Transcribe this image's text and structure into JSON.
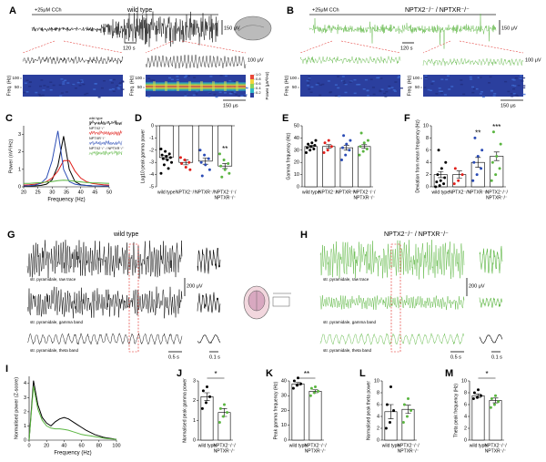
{
  "panels": {
    "A": {
      "label": "A",
      "drug": "+25μM CCh",
      "title": "wild type",
      "scale_v": "150 μV",
      "scale_t": "120 s",
      "zoom_scale": "100 μV",
      "freq_label": "Freq. (Hz)",
      "freq_ticks": [
        50,
        100
      ],
      "colorbar_label": "Power (μV²/Hz)",
      "colorbar_ticks": [
        0.2,
        0.4,
        0.6,
        0.8,
        {
          "value": 1,
          "label": "1.0"
        }
      ],
      "time_scale": "150 μs"
    },
    "B": {
      "label": "B",
      "drug": "+25μM CCh",
      "title": "NPTX2⁻/⁻ / NPTXR⁻/⁻",
      "scale_v": "150 μV",
      "scale_t": "120 s",
      "zoom_scale": "100 μV",
      "freq_label": "Freq. (Hz)",
      "freq_ticks": [
        50,
        100
      ],
      "time_scale": "150 μs"
    },
    "G": {
      "label": "G",
      "title": "wild type",
      "traces": [
        "str. pyramidale, raw trace",
        "str. pyramidale, gamma band",
        "str. pyramidale, theta band"
      ],
      "scale_v": "200 μV",
      "scale_t1": "0.5 s",
      "scale_t2": "0.1 s"
    },
    "H": {
      "label": "H",
      "title": "NPTX2⁻/⁻ / NPTXR⁻/⁻",
      "traces": [
        "str. pyramidale, raw trace",
        "str. pyramidale, gamma band",
        "str. pyramidale, theta band"
      ],
      "scale_v": "200 μV",
      "scale_t1": "0.5 s",
      "scale_t2": "0.1 s"
    }
  },
  "chart_data": [
    {
      "type": "line",
      "label": "C",
      "xlabel": "Frequency (Hz)",
      "ylabel": "Power (nV²/Hz)",
      "x": [
        20,
        22,
        24,
        26,
        28,
        30,
        32,
        34,
        36,
        38,
        40,
        42,
        44,
        46,
        48,
        50
      ],
      "xlim": [
        20,
        50
      ],
      "xticks": [
        20,
        25,
        30,
        35,
        40,
        45,
        50
      ],
      "ylim": [
        0,
        3.5
      ],
      "yticks": [
        0,
        1,
        2,
        3
      ],
      "series": [
        {
          "name": "wild type",
          "color": "#000000",
          "values": [
            0.03,
            0.04,
            0.05,
            0.08,
            0.15,
            0.4,
            1.2,
            2.9,
            1.0,
            0.3,
            0.12,
            0.08,
            0.06,
            0.05,
            0.04,
            0.04
          ]
        },
        {
          "name": "NPTX2⁻/⁻",
          "color": "#e0201b",
          "values": [
            0.1,
            0.12,
            0.15,
            0.2,
            0.3,
            0.5,
            0.9,
            1.5,
            1.5,
            0.9,
            0.5,
            0.3,
            0.2,
            0.15,
            0.12,
            0.1
          ]
        },
        {
          "name": "NPTXR⁻/⁻",
          "color": "#2a4bb5",
          "values": [
            0.05,
            0.07,
            0.1,
            0.2,
            0.5,
            1.5,
            3.2,
            1.0,
            0.3,
            0.15,
            0.1,
            0.08,
            0.06,
            0.05,
            0.05,
            0.04
          ]
        },
        {
          "name": "NPTX2⁻/⁻ / NPTXR⁻/⁻",
          "color": "#5ab540",
          "values": [
            0.2,
            0.2,
            0.22,
            0.24,
            0.27,
            0.3,
            0.35,
            0.38,
            0.36,
            0.32,
            0.28,
            0.25,
            0.23,
            0.22,
            0.21,
            0.2
          ]
        }
      ]
    },
    {
      "type": "dotbar",
      "label": "D",
      "ylabel": "Log10 peak gamma power",
      "categories": [
        "wild type",
        "NPTX2⁻/⁻",
        "NPTXR⁻/⁻",
        [
          "NPTX2⁻/⁻/",
          "NPTXR⁻/⁻"
        ]
      ],
      "colors": [
        "#000000",
        "#e0201b",
        "#2a4bb5",
        "#5ab540"
      ],
      "values": [
        -2.6,
        -3.0,
        -2.9,
        -3.3
      ],
      "errors": [
        0.15,
        0.2,
        0.25,
        0.2
      ],
      "points": [
        [
          -1.9,
          -2.1,
          -2.3,
          -2.4,
          -2.5,
          -2.6,
          -2.7,
          -2.8,
          -3.0,
          -3.2,
          -3.5,
          -3.9
        ],
        [
          -2.6,
          -2.8,
          -3.0,
          -3.1,
          -3.4,
          -3.6
        ],
        [
          -2.0,
          -2.4,
          -2.7,
          -3.0,
          -3.2,
          -3.6,
          -4.1
        ],
        [
          -2.3,
          -2.8,
          -3.1,
          -3.3,
          -3.6,
          -3.9,
          -4.2
        ]
      ],
      "significance": [
        null,
        null,
        null,
        "**"
      ],
      "ylim": [
        -5,
        0
      ],
      "yticks": [
        -5,
        -4,
        -3,
        -2,
        -1,
        0
      ]
    },
    {
      "type": "dotbar",
      "label": "E",
      "ylabel": "Gamma frequency (Hz)",
      "categories": [
        "wild type",
        "NPTX2⁻/⁻",
        "NPTXR⁻/⁻",
        [
          "NPTX2⁻/⁻/",
          "NPTXR⁻/⁻"
        ]
      ],
      "colors": [
        "#000000",
        "#e0201b",
        "#2a4bb5",
        "#5ab540"
      ],
      "values": [
        33,
        33,
        32,
        33
      ],
      "errors": [
        0.8,
        1.5,
        2,
        1.5
      ],
      "points": [
        [
          28,
          30,
          31,
          32,
          33,
          34,
          35,
          36,
          38
        ],
        [
          28,
          30,
          33,
          36,
          38
        ],
        [
          22,
          26,
          30,
          32,
          35,
          38,
          42
        ],
        [
          26,
          29,
          31,
          33,
          36,
          38,
          44
        ]
      ],
      "ylim": [
        0,
        50
      ],
      "yticks": [
        0,
        10,
        20,
        30,
        40,
        50
      ]
    },
    {
      "type": "dotbar",
      "label": "F",
      "ylabel": "Deviation from mean frequency (Hz)",
      "categories": [
        "wild type",
        "NPTX2⁻/⁻",
        "NPTXR⁻/⁻",
        [
          "NPTX2⁻/⁻/",
          "NPTXR⁻/⁻"
        ]
      ],
      "colors": [
        "#000000",
        "#e0201b",
        "#2a4bb5",
        "#5ab540"
      ],
      "values": [
        2,
        2,
        4,
        5
      ],
      "errors": [
        0.5,
        0.6,
        0.8,
        0.7
      ],
      "points": [
        [
          0,
          0.2,
          0.5,
          0.8,
          1,
          1.5,
          2,
          3,
          4,
          6
        ],
        [
          0.5,
          1,
          2,
          3
        ],
        [
          1,
          2,
          3,
          4,
          5,
          6,
          8
        ],
        [
          1,
          2,
          3,
          4,
          5,
          7,
          9
        ]
      ],
      "significance": [
        null,
        null,
        "**",
        "***"
      ],
      "ylim": [
        0,
        10
      ],
      "yticks": [
        0,
        2,
        4,
        6,
        8,
        10
      ]
    },
    {
      "type": "line",
      "label": "I",
      "xlabel": "Frequency (Hz)",
      "ylabel": "Normalised power (Z-score)",
      "x": [
        0,
        5,
        10,
        15,
        20,
        25,
        30,
        35,
        40,
        45,
        50,
        55,
        60,
        65,
        70,
        75,
        80,
        85,
        90,
        95,
        100
      ],
      "xlim": [
        0,
        100
      ],
      "xticks": [
        0,
        20,
        40,
        60,
        80,
        100
      ],
      "ylim": [
        0,
        4.5
      ],
      "yticks": [
        0,
        1,
        2,
        3,
        4
      ],
      "series": [
        {
          "name": "wild type",
          "color": "#000000",
          "values": [
            0,
            4.2,
            2.5,
            1.6,
            1.2,
            1.0,
            1.3,
            1.5,
            1.6,
            1.5,
            1.3,
            1.1,
            0.9,
            0.7,
            0.55,
            0.4,
            0.3,
            0.2,
            0.15,
            0.1,
            0.05
          ]
        },
        {
          "name": "NPTX2⁻/⁻ / NPTXR⁻/⁻",
          "color": "#5ab540",
          "values": [
            0,
            3.8,
            2.2,
            1.4,
            1.0,
            0.85,
            0.8,
            0.8,
            0.75,
            0.7,
            0.6,
            0.5,
            0.4,
            0.35,
            0.3,
            0.25,
            0.2,
            0.15,
            0.1,
            0.08,
            0.05
          ]
        }
      ]
    },
    {
      "type": "dotbar",
      "label": "J",
      "ylabel": "Normalised peak gamma power",
      "categories": [
        "wild type",
        [
          "NPTX2⁻/⁻/",
          "NPTXR⁻/⁻"
        ]
      ],
      "colors": [
        "#000000",
        "#5ab540"
      ],
      "values": [
        2.2,
        1.4
      ],
      "errors": [
        0.2,
        0.2
      ],
      "points": [
        [
          1.6,
          1.9,
          2.2,
          2.5,
          2.7
        ],
        [
          0.9,
          1.2,
          1.4,
          1.6,
          1.8
        ]
      ],
      "bracket": "*",
      "ylim": [
        0,
        3
      ],
      "yticks": [
        0,
        1,
        2,
        3
      ]
    },
    {
      "type": "dotbar",
      "label": "K",
      "ylabel": "Peak gamma frequency (Hz)",
      "categories": [
        "wild type",
        [
          "NPTX2⁻/⁻/",
          "NPTXR⁻/⁻"
        ]
      ],
      "colors": [
        "#000000",
        "#5ab540"
      ],
      "values": [
        38,
        33
      ],
      "errors": [
        1,
        1
      ],
      "points": [
        [
          35,
          37,
          38,
          40,
          42
        ],
        [
          30,
          32,
          33,
          35,
          36
        ]
      ],
      "bracket": "**",
      "ylim": [
        0,
        40
      ],
      "yticks": [
        0,
        10,
        20,
        30,
        40
      ]
    },
    {
      "type": "dotbar",
      "label": "L",
      "ylabel": "Normalised peak theta power",
      "categories": [
        "wild type",
        [
          "NPTX2⁻/⁻/",
          "NPTXR⁻/⁻"
        ]
      ],
      "colors": [
        "#000000",
        "#5ab540"
      ],
      "values": [
        4.8,
        5.2
      ],
      "errors": [
        1.2,
        0.7
      ],
      "points": [
        [
          2,
          3,
          5,
          6,
          9
        ],
        [
          3,
          4,
          5,
          6,
          7
        ]
      ],
      "ylim": [
        0,
        10
      ],
      "yticks": [
        0,
        2,
        4,
        6,
        8,
        10
      ]
    },
    {
      "type": "dotbar",
      "label": "M",
      "ylabel": "Theta peak frequency (Hz)",
      "categories": [
        "wild type",
        [
          "NPTX2⁻/⁻/",
          "NPTXR⁻/⁻"
        ]
      ],
      "colors": [
        "#000000",
        "#5ab540"
      ],
      "values": [
        7.5,
        6.7
      ],
      "errors": [
        0.3,
        0.4
      ],
      "points": [
        [
          7,
          7.2,
          7.5,
          8,
          8.5
        ],
        [
          5.5,
          6,
          6.5,
          7,
          7.5
        ]
      ],
      "bracket": "*",
      "ylim": [
        0,
        10
      ],
      "yticks": [
        0,
        2,
        4,
        6,
        8,
        10
      ]
    }
  ]
}
